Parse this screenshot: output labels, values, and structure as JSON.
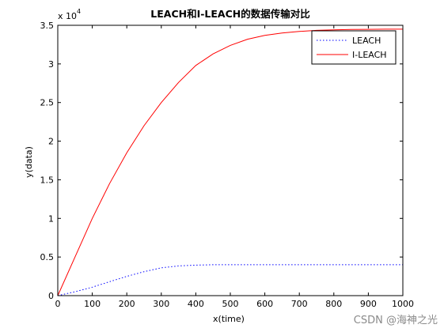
{
  "chart_data": {
    "type": "line",
    "title": "LEACH和I-LEACH的数据传输对比",
    "xlabel": "x(time)",
    "ylabel": "y(data)",
    "exponent_label": "x 10",
    "exponent_power": "4",
    "xlim": [
      0,
      1000
    ],
    "ylim": [
      0,
      35000
    ],
    "xticks": [
      0,
      100,
      200,
      300,
      400,
      500,
      600,
      700,
      800,
      900,
      1000
    ],
    "xtick_labels": [
      "0",
      "100",
      "200",
      "300",
      "400",
      "500",
      "600",
      "700",
      "800",
      "900",
      "1000"
    ],
    "yticks": [
      0,
      5000,
      10000,
      15000,
      20000,
      25000,
      30000,
      35000
    ],
    "ytick_labels": [
      "0",
      "0.5",
      "1",
      "1.5",
      "2",
      "2.5",
      "3",
      "3.5"
    ],
    "legend_position": "top-right",
    "series": [
      {
        "name": "LEACH",
        "color": "#0000ff",
        "style": "dotted",
        "x": [
          0,
          50,
          100,
          150,
          200,
          250,
          300,
          350,
          400,
          450,
          500,
          550,
          600,
          650,
          700,
          750,
          800,
          850,
          900,
          950,
          1000
        ],
        "y": [
          0,
          500,
          1100,
          1800,
          2500,
          3100,
          3600,
          3850,
          3950,
          4000,
          4000,
          4000,
          4000,
          4000,
          4000,
          4000,
          4000,
          4000,
          4000,
          4000,
          4000
        ]
      },
      {
        "name": "I-LEACH",
        "color": "#ff0000",
        "style": "solid",
        "x": [
          0,
          50,
          100,
          150,
          200,
          250,
          300,
          350,
          400,
          450,
          500,
          550,
          600,
          650,
          700,
          750,
          800,
          850,
          900,
          950,
          1000
        ],
        "y": [
          0,
          5000,
          10000,
          14500,
          18500,
          22000,
          25000,
          27600,
          29800,
          31300,
          32400,
          33200,
          33700,
          34000,
          34200,
          34350,
          34420,
          34460,
          34480,
          34500,
          34500
        ]
      }
    ]
  },
  "watermark": "CSDN @海神之光"
}
